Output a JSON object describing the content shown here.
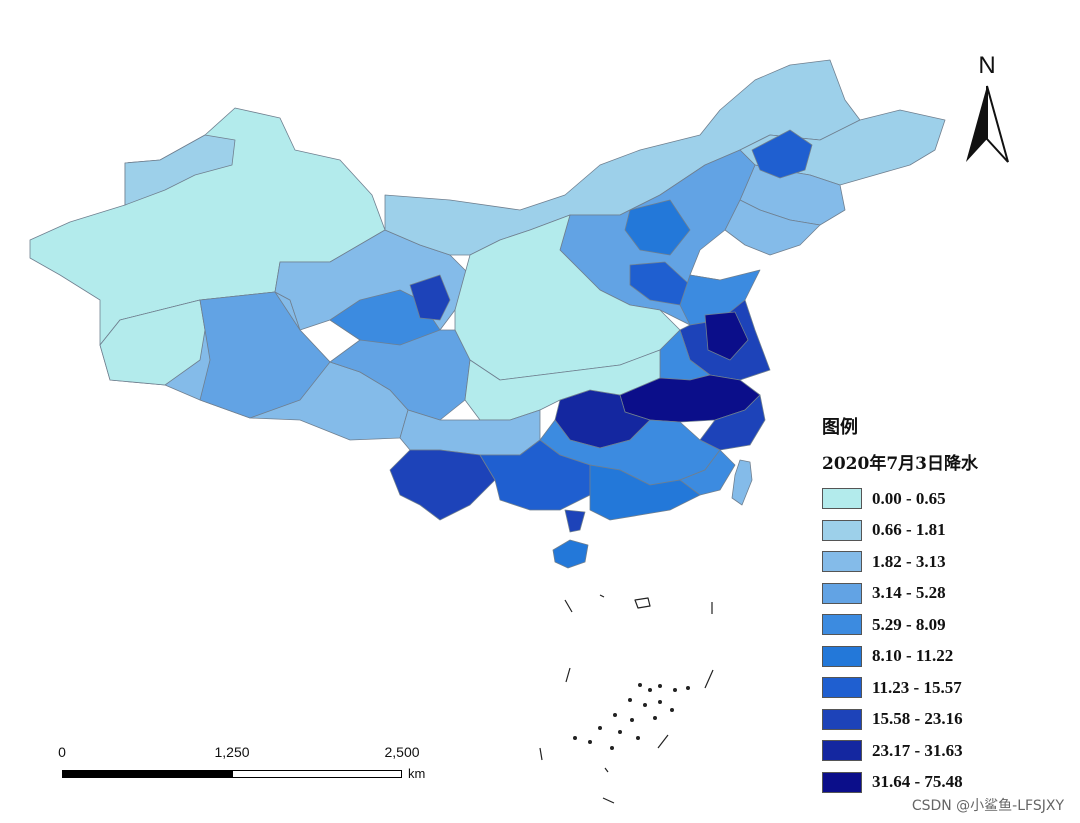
{
  "legend": {
    "title": "图例",
    "subtitle": "2020年7月3日降水",
    "classes": [
      {
        "label": "0.00 - 0.65",
        "color": "#b3ebec"
      },
      {
        "label": "0.66 - 1.81",
        "color": "#9dd0ea"
      },
      {
        "label": "1.82 - 3.13",
        "color": "#84bbe9"
      },
      {
        "label": "3.14 - 5.28",
        "color": "#62a3e4"
      },
      {
        "label": "5.29 - 8.09",
        "color": "#3c8be0"
      },
      {
        "label": "8.10 - 11.22",
        "color": "#2378d9"
      },
      {
        "label": "11.23 - 15.57",
        "color": "#1f5fd0"
      },
      {
        "label": "15.58 - 23.16",
        "color": "#1d43b9"
      },
      {
        "label": "23.17 - 31.63",
        "color": "#1427a0"
      },
      {
        "label": "31.64 - 75.48",
        "color": "#0b0e8a"
      }
    ]
  },
  "north_arrow": {
    "label": "N",
    "icon": "north-arrow-icon"
  },
  "scale_bar": {
    "ticks": [
      "0",
      "1,250",
      "2,500"
    ],
    "unit": "km"
  },
  "watermark": "CSDN @小鲨鱼-LFSJXY"
}
